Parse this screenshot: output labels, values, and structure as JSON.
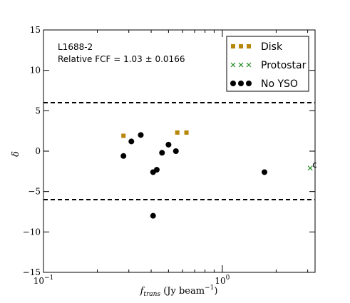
{
  "chart_data": {
    "type": "scatter",
    "x_scale": "log",
    "xlim": [
      0.1,
      3.3
    ],
    "ylim": [
      -15,
      15
    ],
    "x_ticks": [
      0.1,
      1
    ],
    "x_tick_labels": [
      {
        "base": "10",
        "exp": "−1"
      },
      {
        "base": "10",
        "exp": "0"
      }
    ],
    "y_ticks": [
      -15,
      -10,
      -5,
      0,
      5,
      10,
      15
    ],
    "y_tick_labels": [
      "−15",
      "−10",
      "−5",
      "0",
      "5",
      "10",
      "15"
    ],
    "xlabel": {
      "main": "f",
      "sub": "trans",
      "unit": " (Jy beam",
      "unit_exp": "−1",
      "close": ")"
    },
    "ylabel": "δ",
    "annotation_lines": [
      "L1688-2",
      "Relative FCF = 1.03 ± 0.0166"
    ],
    "reference_lines": [
      6,
      -6
    ],
    "legend_position": "top-right",
    "series": [
      {
        "name": "Disk",
        "marker": "square",
        "color": "#b8860b",
        "points": [
          [
            0.28,
            1.9
          ],
          [
            0.56,
            2.3
          ],
          [
            0.63,
            2.3
          ]
        ]
      },
      {
        "name": "Protostar",
        "marker": "x",
        "color": "#228b22",
        "points": [
          [
            3.1,
            -2.1
          ]
        ]
      },
      {
        "name": "No YSO",
        "marker": "circle",
        "color": "#000000",
        "points": [
          [
            0.28,
            -0.6
          ],
          [
            0.31,
            1.2
          ],
          [
            0.35,
            2.0
          ],
          [
            0.41,
            -2.6
          ],
          [
            0.43,
            -2.3
          ],
          [
            0.46,
            -0.2
          ],
          [
            0.5,
            0.8
          ],
          [
            0.55,
            0.0
          ],
          [
            1.72,
            -2.6
          ],
          [
            0.41,
            -8.0
          ]
        ]
      }
    ],
    "point_labels": [
      {
        "text": "c",
        "x": 3.1,
        "y": -2.1
      }
    ]
  }
}
